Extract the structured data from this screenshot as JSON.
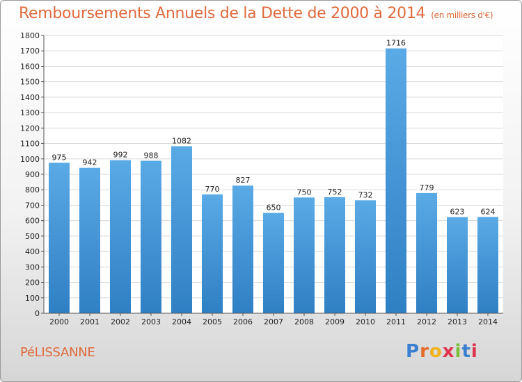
{
  "chart_data": {
    "type": "bar",
    "title": "Remboursements Annuels de la Dette de 2000 à 2014",
    "unit": "(en milliers d'€)",
    "categories": [
      "2000",
      "2001",
      "2002",
      "2003",
      "2004",
      "2005",
      "2006",
      "2007",
      "2008",
      "2009",
      "2010",
      "2011",
      "2012",
      "2013",
      "2014"
    ],
    "values": [
      975,
      942,
      992,
      988,
      1082,
      770,
      827,
      650,
      750,
      752,
      732,
      1716,
      779,
      623,
      624
    ],
    "ylim": [
      0,
      1800
    ],
    "yticks": [
      0,
      100,
      200,
      300,
      400,
      500,
      600,
      700,
      800,
      900,
      1000,
      1100,
      1200,
      1300,
      1400,
      1500,
      1600,
      1700,
      1800
    ],
    "grid": true,
    "bar_color": "#5aaae6",
    "bar_color_dark": "#2f7fc4"
  },
  "town": "PéLISSANNE",
  "logo": [
    "P",
    "r",
    "o",
    "x",
    "i",
    "t",
    "i"
  ]
}
